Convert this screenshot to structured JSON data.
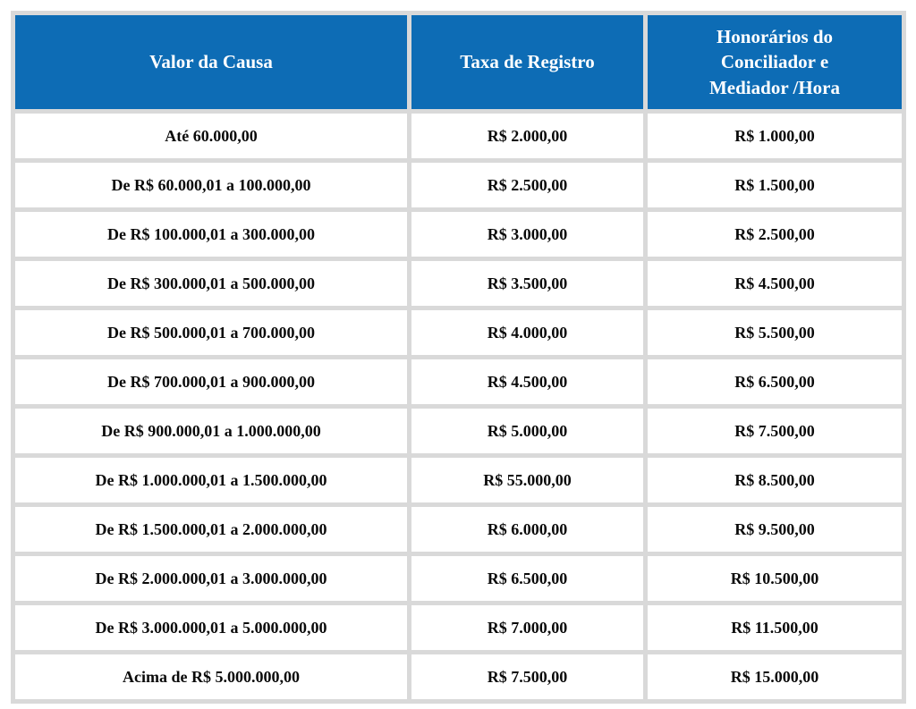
{
  "colors": {
    "header_background": "#0d6cb5",
    "header_text": "#ffffff",
    "grid_lines": "#d9d9d9",
    "cell_background": "#ffffff",
    "body_text": "#0a0a0a"
  },
  "table": {
    "headers": [
      "Valor da Causa",
      "Taxa de Registro",
      "Honorários do Conciliador e Mediador /Hora"
    ],
    "rows": [
      [
        "Até 60.000,00",
        "R$ 2.000,00",
        "R$ 1.000,00"
      ],
      [
        "De R$ 60.000,01 a 100.000,00",
        "R$ 2.500,00",
        "R$ 1.500,00"
      ],
      [
        "De R$ 100.000,01 a 300.000,00",
        "R$ 3.000,00",
        "R$ 2.500,00"
      ],
      [
        "De R$ 300.000,01 a 500.000,00",
        "R$ 3.500,00",
        "R$ 4.500,00"
      ],
      [
        "De R$ 500.000,01 a 700.000,00",
        "R$ 4.000,00",
        "R$ 5.500,00"
      ],
      [
        "De R$ 700.000,01 a 900.000,00",
        "R$ 4.500,00",
        "R$ 6.500,00"
      ],
      [
        "De R$ 900.000,01 a 1.000.000,00",
        "R$ 5.000,00",
        "R$ 7.500,00"
      ],
      [
        "De R$ 1.000.000,01 a 1.500.000,00",
        "R$ 55.000,00",
        "R$ 8.500,00"
      ],
      [
        "De R$ 1.500.000,01 a 2.000.000,00",
        "R$ 6.000,00",
        "R$ 9.500,00"
      ],
      [
        "De R$ 2.000.000,01 a 3.000.000,00",
        "R$ 6.500,00",
        "R$ 10.500,00"
      ],
      [
        "De R$ 3.000.000,01 a 5.000.000,00",
        "R$ 7.000,00",
        "R$ 11.500,00"
      ],
      [
        "Acima de R$ 5.000.000,00",
        "R$ 7.500,00",
        "R$ 15.000,00"
      ]
    ]
  },
  "chart_data": {
    "type": "table",
    "title": "",
    "columns": [
      "Valor da Causa",
      "Taxa de Registro",
      "Honorários do Conciliador e Mediador /Hora"
    ],
    "rows": [
      [
        "Até 60.000,00",
        "R$ 2.000,00",
        "R$ 1.000,00"
      ],
      [
        "De R$ 60.000,01 a 100.000,00",
        "R$ 2.500,00",
        "R$ 1.500,00"
      ],
      [
        "De R$ 100.000,01 a 300.000,00",
        "R$ 3.000,00",
        "R$ 2.500,00"
      ],
      [
        "De R$ 300.000,01 a 500.000,00",
        "R$ 3.500,00",
        "R$ 4.500,00"
      ],
      [
        "De R$ 500.000,01 a 700.000,00",
        "R$ 4.000,00",
        "R$ 5.500,00"
      ],
      [
        "De R$ 700.000,01 a 900.000,00",
        "R$ 4.500,00",
        "R$ 6.500,00"
      ],
      [
        "De R$ 900.000,01 a 1.000.000,00",
        "R$ 5.000,00",
        "R$ 7.500,00"
      ],
      [
        "De R$ 1.000.000,01 a 1.500.000,00",
        "R$ 55.000,00",
        "R$ 8.500,00"
      ],
      [
        "De R$ 1.500.000,01 a 2.000.000,00",
        "R$ 6.000,00",
        "R$ 9.500,00"
      ],
      [
        "De R$ 2.000.000,01 a 3.000.000,00",
        "R$ 6.500,00",
        "R$ 10.500,00"
      ],
      [
        "De R$ 3.000.000,01 a 5.000.000,00",
        "R$ 7.000,00",
        "R$ 11.500,00"
      ],
      [
        "Acima de R$ 5.000.000,00",
        "R$ 7.500,00",
        "R$ 15.000,00"
      ]
    ]
  }
}
